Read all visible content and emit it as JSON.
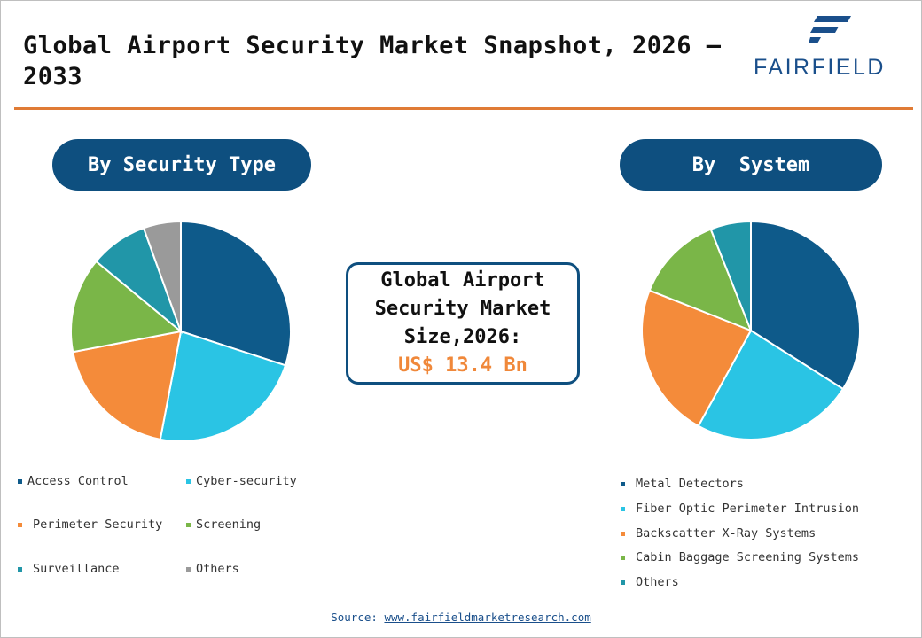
{
  "title": "Global Airport Security Market Snapshot, 2026 – 2033",
  "logo": {
    "text": "FAIRFIELD",
    "icon": "fairfield-logo-icon"
  },
  "colors": {
    "accent_line": "#e07b35",
    "brand_navy": "#0e4f7f",
    "value_orange": "#f0883a"
  },
  "left_section": {
    "heading": "By Security Type"
  },
  "right_section": {
    "heading": "By  System"
  },
  "center_box": {
    "label": "Global Airport Security Market Size,2026:",
    "value": "US$ 13.4 Bn"
  },
  "chart_data": [
    {
      "type": "pie",
      "title": "By Security Type",
      "categories": [
        "Access Control",
        "Cyber-security",
        "Perimeter Security",
        "Screening",
        "Surveillance",
        "Others"
      ],
      "values": [
        30,
        23,
        19,
        14,
        8.5,
        5.5
      ],
      "colors": [
        "#0e5a8a",
        "#2ac4e4",
        "#f48b3a",
        "#7ab648",
        "#2196a8",
        "#9a9a9a"
      ],
      "legend_position": "bottom"
    },
    {
      "type": "pie",
      "title": "By System",
      "categories": [
        "Metal Detectors",
        "Fiber Optic Perimeter Intrusion",
        "Backscatter X-Ray Systems",
        "Cabin Baggage Screening Systems",
        "Others"
      ],
      "values": [
        34,
        24,
        23,
        13,
        6
      ],
      "colors": [
        "#0e5a8a",
        "#2ac4e4",
        "#f48b3a",
        "#7ab648",
        "#2196a8"
      ],
      "legend_position": "bottom"
    }
  ],
  "source": {
    "label": "Source:",
    "link": "www.fairfieldmarketresearch.com"
  }
}
